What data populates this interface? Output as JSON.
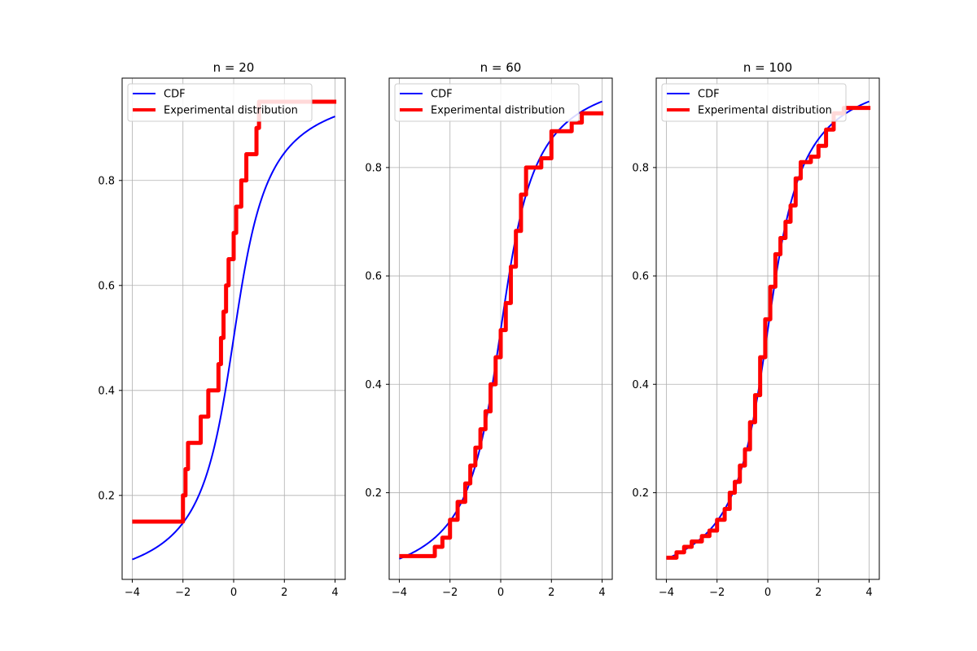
{
  "chart_data": [
    {
      "type": "line",
      "title": "n = 20",
      "xlim": [
        -4.4,
        4.4
      ],
      "ylim": [
        0.04,
        0.995
      ],
      "xticks": [
        -4,
        -2,
        0,
        2,
        4
      ],
      "yticks": [
        0.2,
        0.4,
        0.6,
        0.8
      ],
      "grid": true,
      "legend_position": "top-left",
      "cdf": {
        "name": "CDF",
        "color": "#0000ff",
        "x_min": -4,
        "x_max": 4,
        "function": "standard-cauchy-cdf"
      },
      "experimental": {
        "name": "Experimental distribution",
        "color": "#ff0000",
        "start_value": 0.15,
        "x": [
          -2.0,
          -1.9,
          -1.8,
          -1.3,
          -1.0,
          -0.6,
          -0.5,
          -0.4,
          -0.3,
          -0.2,
          0.0,
          0.1,
          0.3,
          0.4,
          0.5,
          0.9,
          1.0,
          1.2,
          1.5
        ],
        "values": [
          0.2,
          0.25,
          0.3,
          0.35,
          0.4,
          0.45,
          0.5,
          0.55,
          0.6,
          0.65,
          0.7,
          0.75,
          0.8,
          0.8,
          0.85,
          0.9,
          0.95,
          0.95,
          0.95
        ]
      }
    },
    {
      "type": "line",
      "title": "n = 60",
      "xlim": [
        -4.4,
        4.4
      ],
      "ylim": [
        0.04,
        0.965
      ],
      "xticks": [
        -4,
        -2,
        0,
        2,
        4
      ],
      "yticks": [
        0.2,
        0.4,
        0.6,
        0.8
      ],
      "grid": true,
      "legend_position": "top-left",
      "cdf": {
        "name": "CDF",
        "color": "#0000ff",
        "x_min": -4,
        "x_max": 4,
        "function": "standard-cauchy-cdf"
      },
      "experimental": {
        "name": "Experimental distribution",
        "color": "#ff0000",
        "start_value": 0.083,
        "x": [
          -2.6,
          -2.3,
          -2.0,
          -1.7,
          -1.4,
          -1.2,
          -1.0,
          -0.8,
          -0.6,
          -0.4,
          -0.2,
          0.0,
          0.2,
          0.4,
          0.6,
          0.8,
          1.0,
          1.2,
          1.6,
          2.0,
          2.8,
          3.2
        ],
        "values": [
          0.1,
          0.117,
          0.15,
          0.183,
          0.217,
          0.25,
          0.283,
          0.317,
          0.35,
          0.4,
          0.45,
          0.5,
          0.55,
          0.617,
          0.683,
          0.75,
          0.8,
          0.8,
          0.817,
          0.867,
          0.883,
          0.9
        ]
      }
    },
    {
      "type": "line",
      "title": "n = 100",
      "xlim": [
        -4.4,
        4.4
      ],
      "ylim": [
        0.04,
        0.965
      ],
      "xticks": [
        -4,
        -2,
        0,
        2,
        4
      ],
      "yticks": [
        0.2,
        0.4,
        0.6,
        0.8
      ],
      "grid": true,
      "legend_position": "top-left",
      "cdf": {
        "name": "CDF",
        "color": "#0000ff",
        "x_min": -4,
        "x_max": 4,
        "function": "standard-cauchy-cdf"
      },
      "experimental": {
        "name": "Experimental distribution",
        "color": "#ff0000",
        "start_value": 0.08,
        "x": [
          -3.6,
          -3.3,
          -3.0,
          -2.6,
          -2.3,
          -2.0,
          -1.7,
          -1.5,
          -1.3,
          -1.1,
          -0.9,
          -0.7,
          -0.5,
          -0.3,
          -0.1,
          0.1,
          0.3,
          0.5,
          0.7,
          0.9,
          1.1,
          1.3,
          1.7,
          2.0,
          2.3,
          2.6,
          3.0
        ],
        "values": [
          0.09,
          0.1,
          0.11,
          0.12,
          0.13,
          0.15,
          0.17,
          0.2,
          0.22,
          0.25,
          0.28,
          0.33,
          0.38,
          0.45,
          0.52,
          0.58,
          0.64,
          0.67,
          0.7,
          0.73,
          0.78,
          0.81,
          0.82,
          0.84,
          0.87,
          0.9,
          0.91
        ]
      }
    }
  ]
}
